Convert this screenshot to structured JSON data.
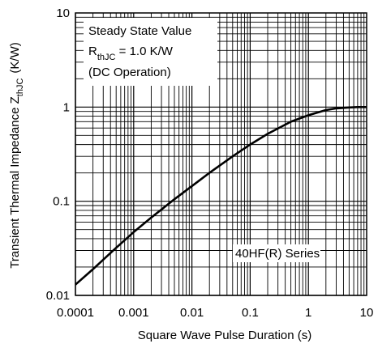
{
  "chart_data": {
    "type": "line",
    "title": "",
    "xlabel": "Square Wave Pulse Duration (s)",
    "ylabel": {
      "main": "Transient Thermal Impedance Z",
      "sub": "thJC",
      "unit": "(K/W)"
    },
    "xscale": "log",
    "yscale": "log",
    "xlim": [
      0.0001,
      10
    ],
    "ylim": [
      0.01,
      10
    ],
    "xticks": [
      "0.0001",
      "0.001",
      "0.01",
      "0.1",
      "1",
      "10"
    ],
    "yticks": [
      "10",
      "1",
      "0.1",
      "0.01"
    ],
    "grid": true,
    "series": [
      {
        "x": [
          0.0001,
          0.0002,
          0.0005,
          0.001,
          0.002,
          0.005,
          0.01,
          0.02,
          0.05,
          0.1,
          0.2,
          0.5,
          1,
          2,
          3,
          5,
          7,
          10
        ],
        "y": [
          0.013,
          0.019,
          0.032,
          0.047,
          0.067,
          0.105,
          0.145,
          0.2,
          0.3,
          0.4,
          0.52,
          0.7,
          0.82,
          0.93,
          0.97,
          0.99,
          1.0,
          1.0
        ]
      }
    ],
    "annotations": {
      "steady_state": {
        "line1": "Steady State Value",
        "line2_main": "R",
        "line2_sub": "thJC",
        "line2_rest": " = 1.0 K/W",
        "line3": "(DC Operation)"
      },
      "series_label": "40HF(R) Series"
    }
  }
}
